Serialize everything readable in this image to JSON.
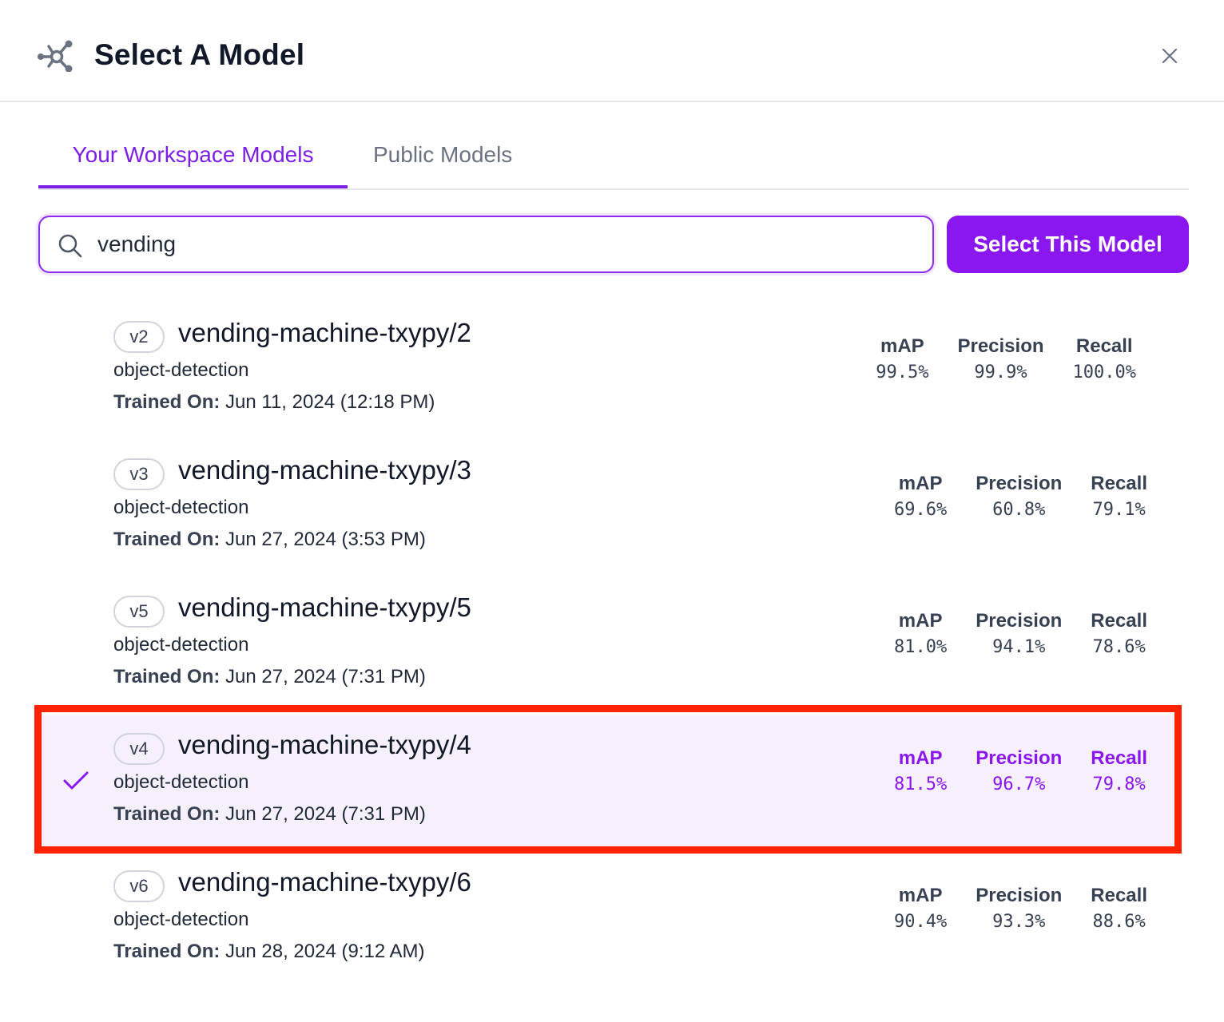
{
  "dialog": {
    "title": "Select A Model",
    "logo_icon": "model-graph-icon",
    "close_icon": "close-icon"
  },
  "tabs": [
    {
      "label": "Your Workspace Models",
      "active": true
    },
    {
      "label": "Public Models",
      "active": false
    }
  ],
  "search": {
    "value": "vending",
    "icon": "search-icon"
  },
  "select_button": {
    "label": "Select This Model"
  },
  "colors": {
    "accent": "#8a17f0",
    "selected_row_bg": "#f6f0fd",
    "highlight_frame": "#ff2200"
  },
  "models": [
    {
      "version": "v2",
      "name": "vending-machine-txypy/2",
      "type": "object-detection",
      "trained_label": "Trained On:",
      "trained_on": "Jun 11, 2024 (12:18 PM)",
      "metrics": {
        "map_label": "mAP",
        "map": "99.5%",
        "precision_label": "Precision",
        "precision": "99.9%",
        "recall_label": "Recall",
        "recall": "100.0%"
      },
      "selected": false
    },
    {
      "version": "v3",
      "name": "vending-machine-txypy/3",
      "type": "object-detection",
      "trained_label": "Trained On:",
      "trained_on": "Jun 27, 2024 (3:53 PM)",
      "metrics": {
        "map_label": "mAP",
        "map": "69.6%",
        "precision_label": "Precision",
        "precision": "60.8%",
        "recall_label": "Recall",
        "recall": "79.1%"
      },
      "selected": false
    },
    {
      "version": "v5",
      "name": "vending-machine-txypy/5",
      "type": "object-detection",
      "trained_label": "Trained On:",
      "trained_on": "Jun 27, 2024 (7:31 PM)",
      "metrics": {
        "map_label": "mAP",
        "map": "81.0%",
        "precision_label": "Precision",
        "precision": "94.1%",
        "recall_label": "Recall",
        "recall": "78.6%"
      },
      "selected": false
    },
    {
      "version": "v4",
      "name": "vending-machine-txypy/4",
      "type": "object-detection",
      "trained_label": "Trained On:",
      "trained_on": "Jun 27, 2024 (7:31 PM)",
      "metrics": {
        "map_label": "mAP",
        "map": "81.5%",
        "precision_label": "Precision",
        "precision": "96.7%",
        "recall_label": "Recall",
        "recall": "79.8%"
      },
      "selected": true
    },
    {
      "version": "v6",
      "name": "vending-machine-txypy/6",
      "type": "object-detection",
      "trained_label": "Trained On:",
      "trained_on": "Jun 28, 2024 (9:12 AM)",
      "metrics": {
        "map_label": "mAP",
        "map": "90.4%",
        "precision_label": "Precision",
        "precision": "93.3%",
        "recall_label": "Recall",
        "recall": "88.6%"
      },
      "selected": false
    }
  ]
}
